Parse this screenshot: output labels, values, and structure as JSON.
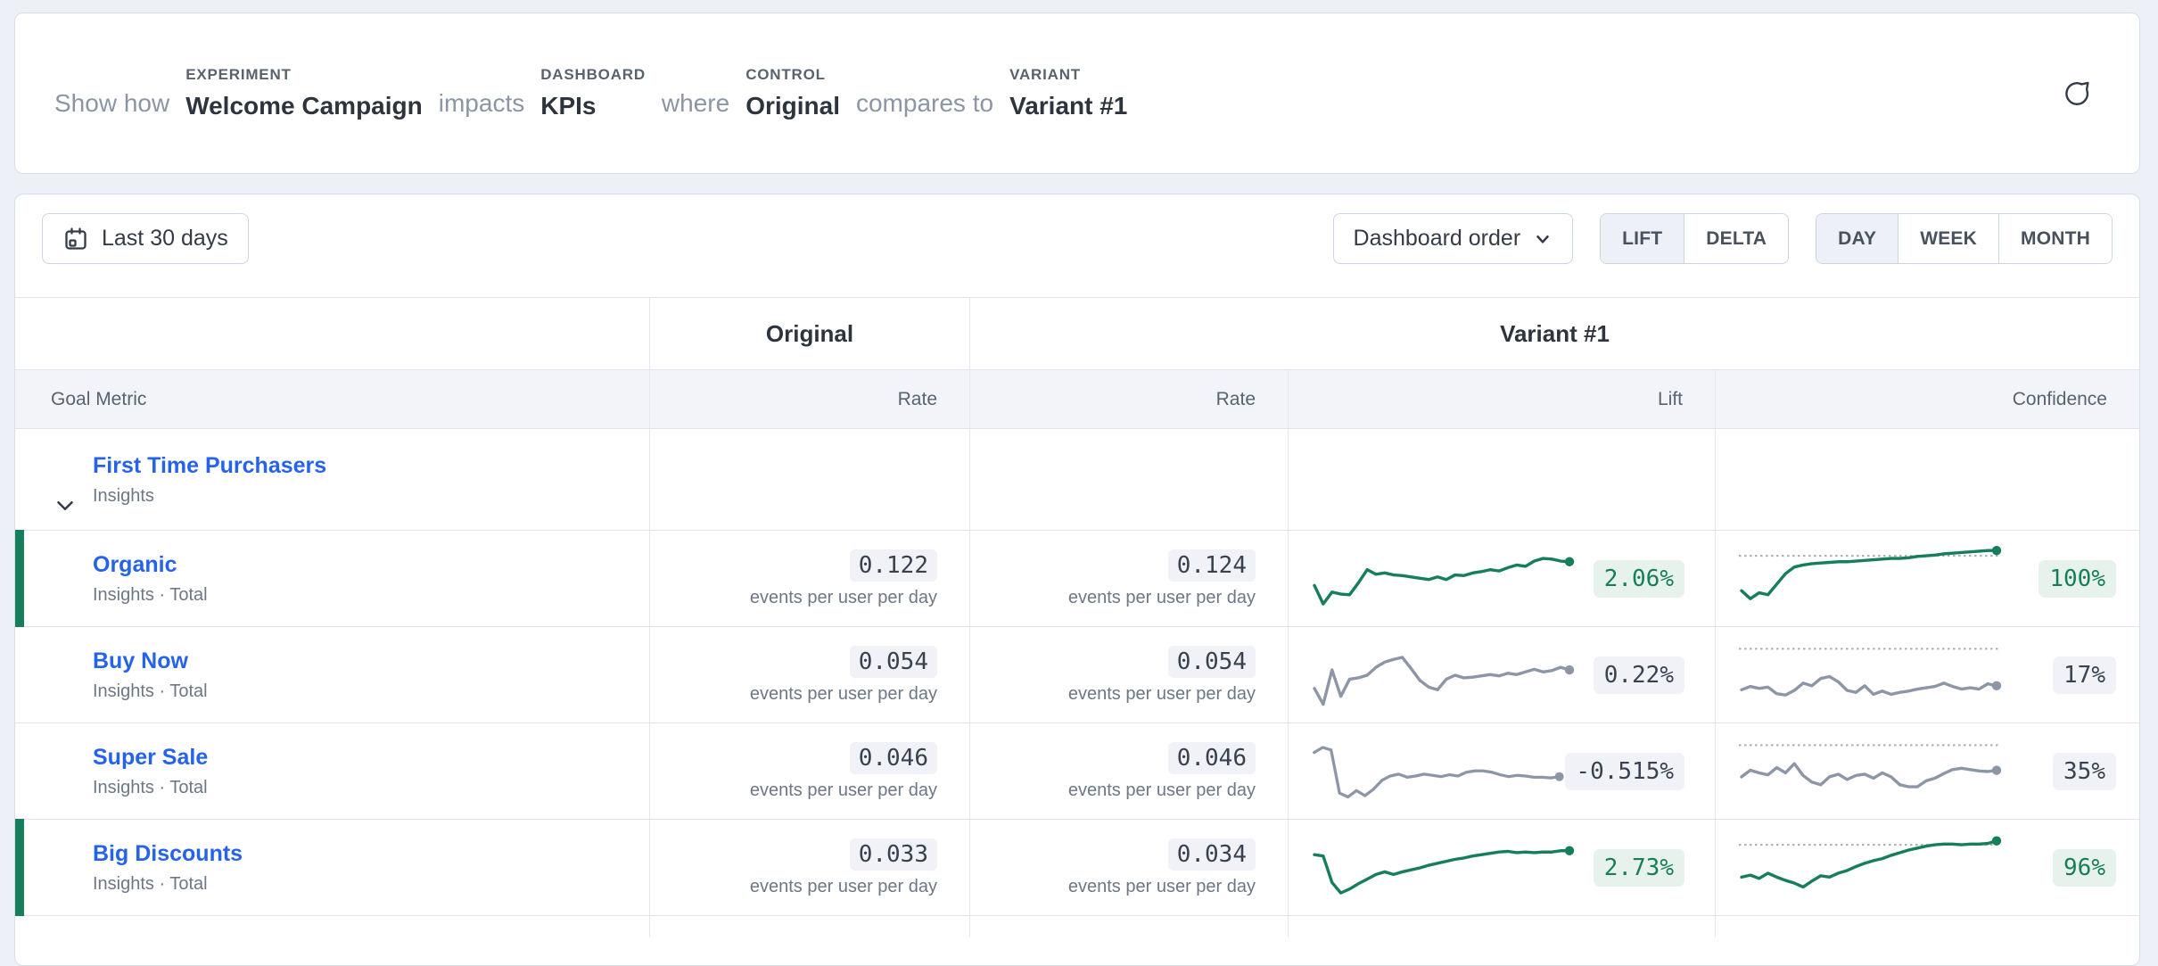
{
  "header": {
    "intro": "Show how",
    "experiment": {
      "label": "EXPERIMENT",
      "value": "Welcome Campaign"
    },
    "impacts": "impacts",
    "dashboard": {
      "label": "DASHBOARD",
      "value": "KPIs"
    },
    "where": "where",
    "control": {
      "label": "CONTROL",
      "value": "Original"
    },
    "compares_to": "compares to",
    "variant": {
      "label": "VARIANT",
      "value": "Variant #1"
    }
  },
  "toolbar": {
    "date_range": "Last 30 days",
    "order_dropdown": "Dashboard order",
    "mode_toggle": {
      "options": [
        "LIFT",
        "DELTA"
      ],
      "selected": "LIFT"
    },
    "granularity_toggle": {
      "options": [
        "DAY",
        "WEEK",
        "MONTH"
      ],
      "selected": "DAY"
    }
  },
  "table": {
    "group_headers": {
      "original": "Original",
      "variant": "Variant #1"
    },
    "subheaders": {
      "goal_metric": "Goal Metric",
      "original_rate": "Rate",
      "variant_rate": "Rate",
      "lift": "Lift",
      "confidence": "Confidence"
    },
    "group_row": {
      "name": "First Time Purchasers",
      "subtitle": "Insights"
    },
    "rate_unit": "events per user per day",
    "rows": [
      {
        "name": "Organic",
        "subtitle": "Insights · Total",
        "original_rate": "0.122",
        "variant_rate": "0.124",
        "lift": "2.06%",
        "confidence": "100%",
        "sentiment": "positive",
        "lift_spark": [
          40,
          12,
          30,
          27,
          26,
          44,
          64,
          57,
          59,
          56,
          55,
          53,
          51,
          49,
          53,
          49,
          56,
          55,
          59,
          61,
          64,
          62,
          67,
          71,
          69,
          77,
          81,
          80,
          77,
          76
        ],
        "conf_spark": [
          32,
          20,
          29,
          26,
          42,
          58,
          68,
          71,
          73,
          74,
          75,
          76,
          76,
          77,
          78,
          79,
          80,
          81,
          81,
          82,
          84,
          85,
          86,
          88,
          89,
          90,
          91,
          92,
          93,
          93
        ],
        "conf_threshold": 85
      },
      {
        "name": "Buy Now",
        "subtitle": "Insights · Total",
        "original_rate": "0.054",
        "variant_rate": "0.054",
        "lift": "0.22%",
        "confidence": "17%",
        "sentiment": "neutral",
        "lift_spark": [
          30,
          6,
          58,
          18,
          44,
          46,
          50,
          62,
          70,
          74,
          77,
          60,
          42,
          32,
          28,
          44,
          50,
          46,
          47,
          49,
          51,
          49,
          53,
          51,
          55,
          59,
          55,
          57,
          62,
          58
        ],
        "conf_spark": [
          28,
          33,
          30,
          32,
          22,
          20,
          27,
          38,
          34,
          45,
          48,
          40,
          27,
          24,
          34,
          21,
          26,
          21,
          24,
          26,
          29,
          31,
          33,
          38,
          33,
          29,
          31,
          29,
          37,
          34
        ],
        "conf_threshold": 90
      },
      {
        "name": "Super Sale",
        "subtitle": "Insights · Total",
        "original_rate": "0.046",
        "variant_rate": "0.046",
        "lift": "-0.515%",
        "confidence": "35%",
        "sentiment": "neutral",
        "lift_spark": [
          80,
          88,
          84,
          16,
          10,
          20,
          12,
          22,
          36,
          43,
          46,
          41,
          43,
          46,
          44,
          42,
          45,
          43,
          49,
          51,
          51,
          49,
          45,
          42,
          44,
          43,
          41,
          41,
          40,
          42
        ],
        "conf_spark": [
          42,
          52,
          48,
          45,
          56,
          48,
          62,
          44,
          34,
          30,
          42,
          46,
          38,
          44,
          46,
          40,
          48,
          42,
          30,
          27,
          27,
          36,
          40,
          47,
          53,
          55,
          53,
          51,
          50,
          52
        ],
        "conf_threshold": 90
      },
      {
        "name": "Big Discounts",
        "subtitle": "Insights · Total",
        "original_rate": "0.033",
        "variant_rate": "0.034",
        "lift": "2.73%",
        "confidence": "96%",
        "sentiment": "positive",
        "lift_spark": [
          70,
          68,
          28,
          12,
          18,
          26,
          33,
          40,
          44,
          40,
          44,
          47,
          50,
          54,
          57,
          60,
          63,
          65,
          68,
          70,
          72,
          74,
          75,
          73,
          74,
          73,
          74,
          74,
          76,
          76
        ],
        "conf_spark": [
          36,
          39,
          34,
          42,
          36,
          31,
          27,
          21,
          30,
          38,
          36,
          42,
          46,
          52,
          57,
          61,
          64,
          69,
          73,
          77,
          80,
          83,
          85,
          86,
          86,
          85,
          86,
          86,
          87,
          91
        ],
        "conf_threshold": 85
      }
    ]
  },
  "colors": {
    "positive_line": "#177e5b",
    "positive_bg": "#e8f2ed",
    "neutral_line": "#8d96a6",
    "neutral_text": "#39424e",
    "neutral_bg": "#f0f2f7",
    "threshold_line": "#a6adba",
    "link_blue": "#2563eb",
    "accent_bar": "#157f5b",
    "page_bg": "#edf0f6"
  }
}
